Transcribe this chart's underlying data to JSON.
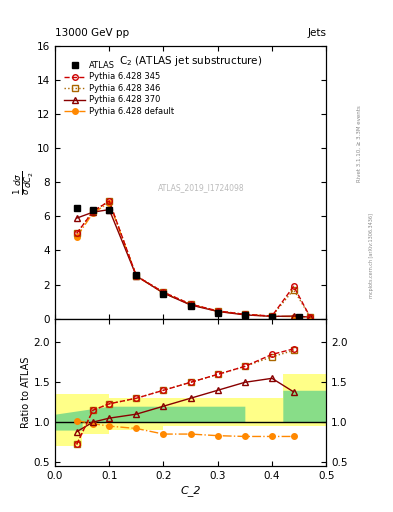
{
  "header_left": "13000 GeV pp",
  "header_right": "Jets",
  "title": "C$_2$ (ATLAS jet substructure)",
  "ylabel_main": "$\\frac{1}{\\sigma}\\frac{d\\sigma}{dC_2}$",
  "ylabel_ratio": "Ratio to ATLAS",
  "xlabel": "C_2",
  "watermark": "ATLAS_2019_I1724098",
  "rivet_label": "Rivet 3.1.10, ≥ 3.3M events",
  "mcplots_label": "mcplots.cern.ch [arXiv:1306.3436]",
  "x_atlas": [
    0.04,
    0.07,
    0.1,
    0.15,
    0.2,
    0.25,
    0.3,
    0.35,
    0.4,
    0.45
  ],
  "y_atlas": [
    6.5,
    6.35,
    6.35,
    2.55,
    1.45,
    0.75,
    0.35,
    0.2,
    0.12,
    0.08
  ],
  "x_345": [
    0.04,
    0.07,
    0.1,
    0.15,
    0.2,
    0.25,
    0.3,
    0.35,
    0.4,
    0.44,
    0.47
  ],
  "y_345": [
    5.0,
    6.3,
    6.9,
    2.5,
    1.55,
    0.85,
    0.45,
    0.25,
    0.15,
    1.9,
    0.12
  ],
  "x_346": [
    0.04,
    0.07,
    0.1,
    0.15,
    0.2,
    0.25,
    0.3,
    0.35,
    0.4,
    0.44,
    0.47
  ],
  "y_346": [
    5.0,
    6.3,
    6.9,
    2.5,
    1.55,
    0.85,
    0.45,
    0.25,
    0.14,
    1.7,
    0.12
  ],
  "x_370": [
    0.04,
    0.07,
    0.1,
    0.15,
    0.2,
    0.25,
    0.3,
    0.35,
    0.4,
    0.44,
    0.47
  ],
  "y_370": [
    5.9,
    6.25,
    6.4,
    2.5,
    1.5,
    0.8,
    0.42,
    0.22,
    0.13,
    0.15,
    0.09
  ],
  "x_def": [
    0.04,
    0.07,
    0.1,
    0.15,
    0.2,
    0.25,
    0.3,
    0.35,
    0.4,
    0.44,
    0.47
  ],
  "y_def": [
    4.8,
    6.2,
    6.8,
    2.5,
    1.5,
    0.82,
    0.43,
    0.24,
    0.14,
    0.12,
    0.09
  ],
  "ratio_345_x": [
    0.04,
    0.07,
    0.1,
    0.15,
    0.2,
    0.25,
    0.3,
    0.35,
    0.4,
    0.44
  ],
  "ratio_345_y": [
    0.72,
    1.15,
    1.23,
    1.3,
    1.4,
    1.5,
    1.6,
    1.7,
    1.85,
    1.92
  ],
  "ratio_346_x": [
    0.04,
    0.07,
    0.1,
    0.15,
    0.2,
    0.25,
    0.3,
    0.35,
    0.4,
    0.44
  ],
  "ratio_346_y": [
    0.72,
    1.15,
    1.23,
    1.3,
    1.4,
    1.5,
    1.6,
    1.7,
    1.82,
    1.9
  ],
  "ratio_370_x": [
    0.04,
    0.07,
    0.1,
    0.15,
    0.2,
    0.25,
    0.3,
    0.35,
    0.4,
    0.44
  ],
  "ratio_370_y": [
    0.88,
    1.0,
    1.05,
    1.1,
    1.2,
    1.3,
    1.4,
    1.5,
    1.55,
    1.38
  ],
  "ratio_def_x": [
    0.04,
    0.07,
    0.1,
    0.15,
    0.2,
    0.25,
    0.3,
    0.35,
    0.4,
    0.44
  ],
  "ratio_def_y": [
    1.02,
    0.98,
    0.95,
    0.92,
    0.85,
    0.85,
    0.83,
    0.82,
    0.82,
    0.82
  ],
  "color_atlas": "#000000",
  "color_345": "#cc0000",
  "color_346": "#aa6600",
  "color_370": "#880000",
  "color_def": "#ff8800",
  "xlim": [
    0.0,
    0.5
  ],
  "ylim_main": [
    0,
    16
  ],
  "ylim_ratio": [
    0.45,
    2.3
  ],
  "yticks_main": [
    0,
    2,
    4,
    6,
    8,
    10,
    12,
    14,
    16
  ],
  "yticks_ratio": [
    0.5,
    1.0,
    1.5,
    2.0
  ]
}
